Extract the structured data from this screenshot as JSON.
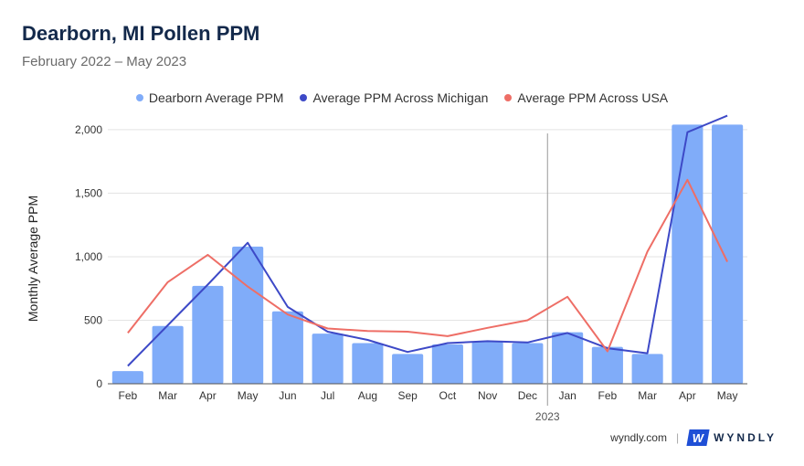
{
  "title": "Dearborn, MI Pollen PPM",
  "subtitle": "February 2022 – May 2023",
  "footer": {
    "site": "wyndly.com",
    "brand": "WYNDLY",
    "brand_mark": "W"
  },
  "colors": {
    "bar": "#80acf9",
    "michigan": "#3d49c7",
    "usa": "#ee6e66",
    "grid": "#e3e3e3",
    "divider": "#999999"
  },
  "chart_data": {
    "type": "bar",
    "title": "Dearborn, MI Pollen PPM",
    "subtitle": "February 2022 – May 2023",
    "ylabel": "Monthly Average PPM",
    "xlabel": "",
    "ylim": [
      0,
      2100
    ],
    "yticks": [
      0,
      500,
      1000,
      1500,
      2000
    ],
    "ytick_labels": [
      "0",
      "500",
      "1,000",
      "1,500",
      "2,000"
    ],
    "categories": [
      "Feb",
      "Mar",
      "Apr",
      "May",
      "Jun",
      "Jul",
      "Aug",
      "Sep",
      "Oct",
      "Nov",
      "Dec",
      "Jan",
      "Feb",
      "Mar",
      "Apr",
      "May"
    ],
    "year_marker": {
      "label": "2023",
      "before_index": 11
    },
    "legend_position": "top-center",
    "grid": true,
    "series": [
      {
        "name": "Dearborn Average PPM",
        "type": "bar",
        "values": [
          100,
          455,
          770,
          1080,
          570,
          395,
          320,
          235,
          310,
          330,
          320,
          405,
          290,
          235,
          2040,
          2040
        ]
      },
      {
        "name": "Average PPM Across Michigan",
        "type": "line",
        "values": [
          140,
          460,
          780,
          1110,
          605,
          410,
          345,
          250,
          320,
          335,
          325,
          400,
          280,
          240,
          1980,
          2110
        ]
      },
      {
        "name": "Average PPM Across USA",
        "type": "line",
        "values": [
          400,
          800,
          1015,
          765,
          545,
          435,
          415,
          410,
          375,
          440,
          500,
          685,
          255,
          1040,
          1605,
          960
        ]
      }
    ]
  }
}
